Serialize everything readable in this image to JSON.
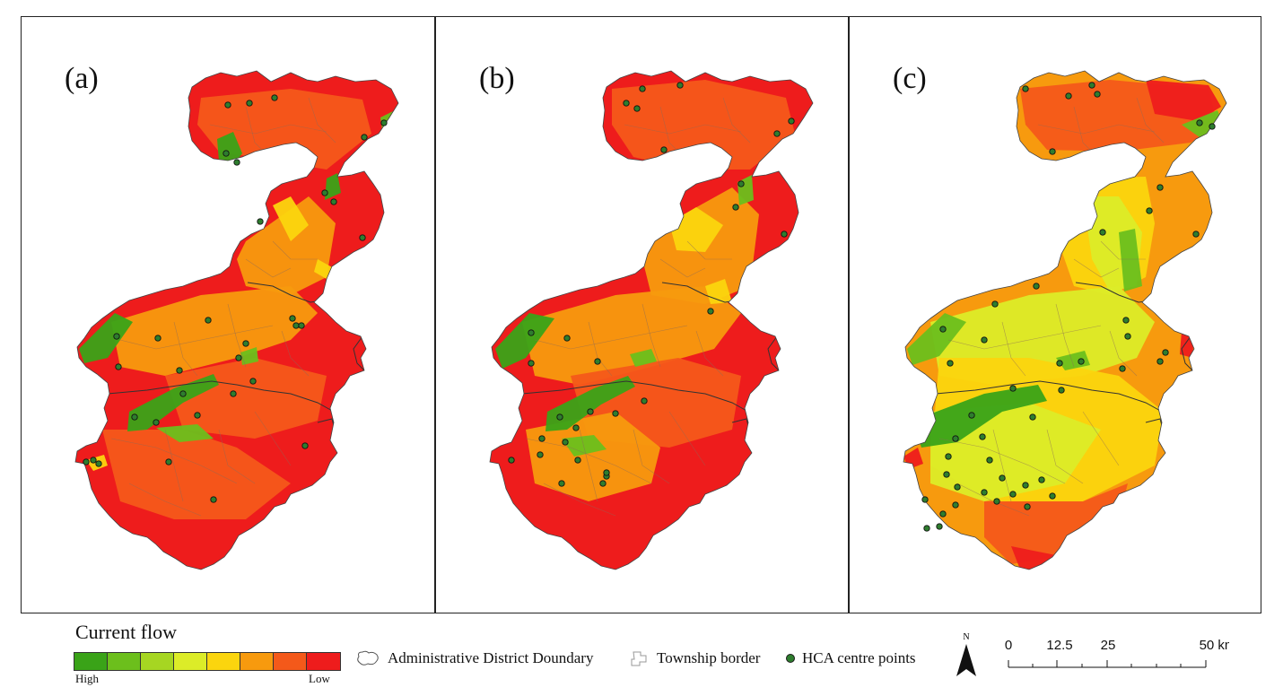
{
  "panels": [
    {
      "label": "(a)",
      "variant": "a"
    },
    {
      "label": "(b)",
      "variant": "b"
    },
    {
      "label": "(c)",
      "variant": "c"
    }
  ],
  "legend": {
    "title": "Current flow",
    "high_label": "High",
    "low_label": "Low",
    "ramp_colors": [
      "#3aa318",
      "#6cbf1c",
      "#a6d622",
      "#dcec28",
      "#fbd50e",
      "#f79a0e",
      "#f4591a",
      "#ee1c1c"
    ],
    "admin_boundary": "Administrative District Doundary",
    "township_border": "Township border",
    "hca_points": "HCA centre points"
  },
  "north_label": "N",
  "scale_bar": {
    "ticks": [
      "0",
      "12.5",
      "25",
      "50 km"
    ]
  },
  "colors": {
    "low": "#ee1c1c",
    "mid_low": "#f4591a",
    "mid": "#f79a0e",
    "yellow": "#fbd50e",
    "yellow_green": "#dcec28",
    "green": "#6cbf1c",
    "dark_green": "#3aa318",
    "hca_point": "#2e7d2e"
  }
}
